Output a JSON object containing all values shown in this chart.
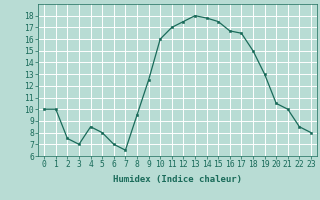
{
  "x": [
    0,
    1,
    2,
    3,
    4,
    5,
    6,
    7,
    8,
    9,
    10,
    11,
    12,
    13,
    14,
    15,
    16,
    17,
    18,
    19,
    20,
    21,
    22,
    23
  ],
  "y": [
    10,
    10,
    7.5,
    7,
    8.5,
    8,
    7,
    6.5,
    9.5,
    12.5,
    16,
    17,
    17.5,
    18,
    17.8,
    17.5,
    16.7,
    16.5,
    15,
    13,
    10.5,
    10,
    8.5,
    8
  ],
  "line_color": "#1a6b5a",
  "marker_color": "#1a6b5a",
  "bg_color": "#b8dcd4",
  "grid_color": "#ffffff",
  "xlabel": "Humidex (Indice chaleur)",
  "ylabel": "",
  "xlim": [
    -0.5,
    23.5
  ],
  "ylim": [
    6,
    19
  ],
  "yticks": [
    6,
    7,
    8,
    9,
    10,
    11,
    12,
    13,
    14,
    15,
    16,
    17,
    18
  ],
  "xticks": [
    0,
    1,
    2,
    3,
    4,
    5,
    6,
    7,
    8,
    9,
    10,
    11,
    12,
    13,
    14,
    15,
    16,
    17,
    18,
    19,
    20,
    21,
    22,
    23
  ],
  "xlabel_fontsize": 6.5,
  "tick_fontsize": 5.8,
  "marker_size": 2.0,
  "line_width": 0.9
}
